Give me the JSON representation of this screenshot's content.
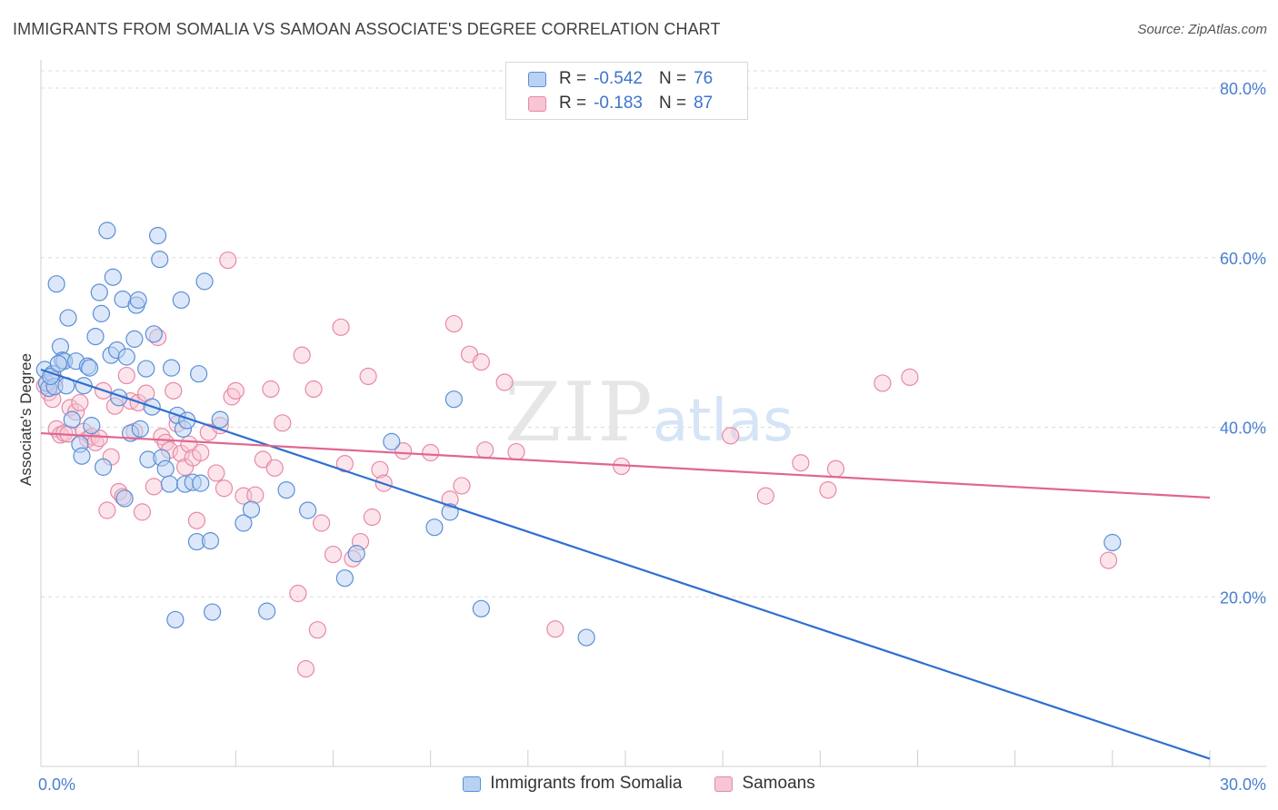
{
  "header": {
    "title": "IMMIGRANTS FROM SOMALIA VS SAMOAN ASSOCIATE'S DEGREE CORRELATION CHART",
    "source": "Source: ZipAtlas.com"
  },
  "watermark": {
    "zip": "ZIP",
    "atlas": "atlas"
  },
  "legend": {
    "rows": [
      {
        "r_label": "R =",
        "r_value": "-0.542",
        "n_label": "N =",
        "n_value": "76"
      },
      {
        "r_label": "R =",
        "r_value": "-0.183",
        "n_label": "N =",
        "n_value": "87"
      }
    ]
  },
  "chart_data": {
    "type": "scatter",
    "title": "IMMIGRANTS FROM SOMALIA VS SAMOAN ASSOCIATE'S DEGREE CORRELATION CHART",
    "xlabel": "",
    "ylabel": "Associate's Degree",
    "xlim": [
      0,
      30
    ],
    "ylim": [
      0,
      80
    ],
    "x_tick_labels": [
      "0.0%",
      "30.0%"
    ],
    "y_ticks": [
      20,
      40,
      60,
      80
    ],
    "y_tick_labels": [
      "20.0%",
      "40.0%",
      "60.0%",
      "80.0%"
    ],
    "grid": true,
    "legend_position": "top-center",
    "colors": {
      "somalia_fill": "#b9d2f3",
      "somalia_stroke": "#5b8fd6",
      "somalia_line": "#2e6fd0",
      "samoan_fill": "#f7c5d3",
      "samoan_stroke": "#e889a6",
      "samoan_line": "#e0668f"
    },
    "series": [
      {
        "name": "Immigrants from Somalia",
        "trend": {
          "x": [
            0,
            30
          ],
          "y": [
            46.8,
            0.9
          ]
        },
        "points": [
          [
            0.1,
            46.8
          ],
          [
            0.15,
            45.2
          ],
          [
            0.2,
            44.6
          ],
          [
            0.3,
            46.3
          ],
          [
            0.35,
            44.8
          ],
          [
            0.4,
            56.9
          ],
          [
            0.5,
            49.5
          ],
          [
            0.55,
            47.9
          ],
          [
            0.6,
            47.8
          ],
          [
            0.65,
            44.9
          ],
          [
            0.7,
            52.9
          ],
          [
            0.8,
            40.9
          ],
          [
            0.9,
            47.8
          ],
          [
            1.0,
            38.0
          ],
          [
            1.05,
            36.6
          ],
          [
            1.1,
            44.9
          ],
          [
            1.2,
            47.2
          ],
          [
            1.3,
            40.2
          ],
          [
            1.4,
            50.7
          ],
          [
            1.5,
            55.9
          ],
          [
            1.55,
            53.4
          ],
          [
            1.6,
            35.3
          ],
          [
            1.7,
            63.2
          ],
          [
            1.8,
            48.5
          ],
          [
            1.85,
            57.7
          ],
          [
            1.95,
            49.1
          ],
          [
            2.0,
            43.5
          ],
          [
            2.1,
            55.1
          ],
          [
            2.15,
            31.6
          ],
          [
            2.2,
            48.3
          ],
          [
            2.3,
            39.3
          ],
          [
            2.4,
            50.4
          ],
          [
            2.45,
            54.4
          ],
          [
            2.5,
            55.0
          ],
          [
            2.55,
            39.8
          ],
          [
            2.7,
            46.9
          ],
          [
            2.75,
            36.2
          ],
          [
            2.9,
            51.0
          ],
          [
            3.0,
            62.6
          ],
          [
            3.05,
            59.8
          ],
          [
            3.1,
            36.4
          ],
          [
            3.2,
            35.1
          ],
          [
            3.3,
            33.3
          ],
          [
            3.35,
            47.0
          ],
          [
            3.45,
            17.3
          ],
          [
            3.5,
            41.4
          ],
          [
            3.6,
            55.0
          ],
          [
            3.65,
            39.8
          ],
          [
            3.7,
            33.3
          ],
          [
            3.75,
            40.8
          ],
          [
            3.9,
            33.5
          ],
          [
            4.0,
            26.5
          ],
          [
            4.05,
            46.3
          ],
          [
            4.1,
            33.4
          ],
          [
            4.2,
            57.2
          ],
          [
            4.35,
            26.6
          ],
          [
            4.4,
            18.2
          ],
          [
            4.6,
            40.9
          ],
          [
            5.2,
            28.7
          ],
          [
            5.4,
            30.3
          ],
          [
            5.8,
            18.3
          ],
          [
            6.3,
            32.6
          ],
          [
            6.85,
            30.2
          ],
          [
            7.8,
            22.2
          ],
          [
            8.1,
            25.1
          ],
          [
            9.0,
            38.3
          ],
          [
            10.1,
            28.2
          ],
          [
            10.6,
            43.3
          ],
          [
            10.5,
            30.0
          ],
          [
            11.3,
            18.6
          ],
          [
            14.0,
            15.2
          ],
          [
            27.5,
            26.4
          ],
          [
            0.25,
            46.0
          ],
          [
            0.45,
            47.5
          ],
          [
            1.25,
            47.0
          ],
          [
            2.85,
            42.4
          ]
        ]
      },
      {
        "name": "Samoans",
        "trend": {
          "x": [
            0,
            30
          ],
          "y": [
            39.3,
            31.7
          ]
        },
        "points": [
          [
            0.1,
            44.9
          ],
          [
            0.2,
            44.1
          ],
          [
            0.3,
            43.3
          ],
          [
            0.35,
            45.6
          ],
          [
            0.4,
            39.8
          ],
          [
            0.5,
            39.1
          ],
          [
            0.6,
            39.3
          ],
          [
            0.7,
            39.2
          ],
          [
            0.75,
            42.3
          ],
          [
            0.9,
            41.8
          ],
          [
            1.0,
            42.9
          ],
          [
            1.1,
            39.5
          ],
          [
            1.2,
            38.6
          ],
          [
            1.3,
            38.9
          ],
          [
            1.4,
            38.2
          ],
          [
            1.5,
            38.7
          ],
          [
            1.6,
            44.3
          ],
          [
            1.7,
            30.2
          ],
          [
            1.8,
            36.5
          ],
          [
            1.9,
            42.5
          ],
          [
            2.0,
            32.4
          ],
          [
            2.1,
            31.8
          ],
          [
            2.2,
            46.1
          ],
          [
            2.3,
            43.1
          ],
          [
            2.4,
            39.5
          ],
          [
            2.5,
            42.9
          ],
          [
            2.6,
            30.0
          ],
          [
            2.7,
            44.0
          ],
          [
            2.9,
            33.0
          ],
          [
            3.0,
            50.6
          ],
          [
            3.1,
            38.9
          ],
          [
            3.2,
            38.2
          ],
          [
            3.3,
            37.3
          ],
          [
            3.4,
            44.3
          ],
          [
            3.5,
            40.4
          ],
          [
            3.6,
            36.9
          ],
          [
            3.7,
            35.3
          ],
          [
            3.8,
            38.0
          ],
          [
            3.9,
            36.4
          ],
          [
            4.0,
            29.0
          ],
          [
            4.1,
            37.0
          ],
          [
            4.3,
            39.4
          ],
          [
            4.5,
            34.6
          ],
          [
            4.6,
            40.2
          ],
          [
            4.7,
            32.8
          ],
          [
            4.8,
            59.7
          ],
          [
            4.9,
            43.6
          ],
          [
            5.0,
            44.3
          ],
          [
            5.2,
            31.9
          ],
          [
            5.5,
            32.0
          ],
          [
            5.7,
            36.2
          ],
          [
            5.9,
            44.5
          ],
          [
            6.0,
            35.2
          ],
          [
            6.2,
            40.5
          ],
          [
            6.6,
            20.4
          ],
          [
            6.7,
            48.5
          ],
          [
            7.0,
            44.5
          ],
          [
            7.1,
            16.1
          ],
          [
            7.2,
            28.7
          ],
          [
            6.8,
            11.5
          ],
          [
            7.5,
            25.0
          ],
          [
            7.7,
            51.8
          ],
          [
            7.8,
            35.7
          ],
          [
            8.0,
            24.5
          ],
          [
            8.2,
            26.5
          ],
          [
            8.4,
            46.0
          ],
          [
            8.5,
            29.4
          ],
          [
            8.7,
            35.0
          ],
          [
            8.8,
            33.4
          ],
          [
            9.3,
            37.2
          ],
          [
            10.0,
            37.0
          ],
          [
            10.5,
            31.5
          ],
          [
            10.6,
            52.2
          ],
          [
            10.8,
            33.1
          ],
          [
            11.0,
            48.6
          ],
          [
            11.3,
            47.7
          ],
          [
            11.4,
            37.3
          ],
          [
            11.9,
            45.3
          ],
          [
            12.2,
            37.1
          ],
          [
            13.2,
            16.2
          ],
          [
            14.9,
            35.4
          ],
          [
            17.7,
            39.0
          ],
          [
            18.6,
            31.9
          ],
          [
            19.5,
            35.8
          ],
          [
            20.2,
            32.6
          ],
          [
            20.4,
            35.1
          ],
          [
            21.6,
            45.2
          ]
        ]
      }
    ],
    "extra_points": {
      "Samoans": [
        [
          22.3,
          45.9
        ],
        [
          27.4,
          24.3
        ]
      ]
    }
  },
  "bottom_legend": {
    "items": [
      {
        "label": "Immigrants from Somalia"
      },
      {
        "label": "Samoans"
      }
    ]
  }
}
